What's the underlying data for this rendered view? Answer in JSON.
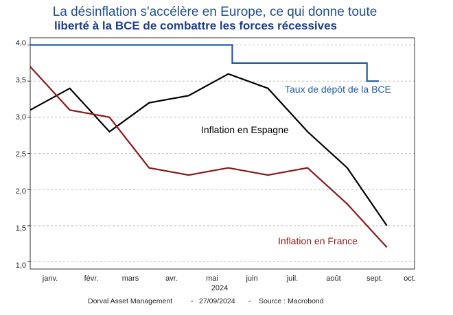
{
  "chart_data": {
    "type": "line",
    "title_line1": "La désinflation s'accélère en Europe, ce qui donne toute",
    "title_line2": "liberté à la BCE de combattre les forces récessives",
    "x_axis_year": "2024",
    "x_ticks": [
      "janv.",
      "févr.",
      "mars",
      "avr.",
      "mai",
      "juin",
      "juil.",
      "août",
      "sept.",
      "oct."
    ],
    "y_ticks": [
      "4,0",
      "3,5",
      "3,0",
      "2,5",
      "2,0",
      "1,5",
      "1,0"
    ],
    "y_tick_values": [
      4.0,
      3.5,
      3.0,
      2.5,
      2.0,
      1.5,
      1.0
    ],
    "ylim": [
      0.9,
      4.1
    ],
    "xlim": [
      0,
      9.7
    ],
    "grid": true,
    "series": [
      {
        "name": "Taux de dépôt de la BCE",
        "color": "#1f5aa6",
        "step": true,
        "points": [
          [
            0,
            4.0
          ],
          [
            5.1,
            4.0
          ],
          [
            5.1,
            3.75
          ],
          [
            8.5,
            3.75
          ],
          [
            8.5,
            3.5
          ],
          [
            8.8,
            3.5
          ]
        ]
      },
      {
        "name": "Inflation en Espagne",
        "color": "#000000",
        "step": false,
        "points": [
          [
            0,
            3.1
          ],
          [
            1,
            3.4
          ],
          [
            2,
            2.8
          ],
          [
            3,
            3.2
          ],
          [
            4,
            3.3
          ],
          [
            5,
            3.6
          ],
          [
            6,
            3.4
          ],
          [
            7,
            2.8
          ],
          [
            8,
            2.3
          ],
          [
            9,
            1.5
          ]
        ]
      },
      {
        "name": "Inflation en France",
        "color": "#8b1a1a",
        "step": false,
        "points": [
          [
            0,
            3.7
          ],
          [
            1,
            3.1
          ],
          [
            2,
            3.0
          ],
          [
            3,
            2.3
          ],
          [
            4,
            2.2
          ],
          [
            5,
            2.3
          ],
          [
            6,
            2.2
          ],
          [
            7,
            2.3
          ],
          [
            8,
            1.8
          ],
          [
            9,
            1.2
          ]
        ]
      }
    ],
    "source_company": "Dorval Asset Management",
    "source_sep1": "-",
    "source_date": "27/09/2024",
    "source_sep2": "-",
    "source_text": "Source : Macrobond"
  }
}
